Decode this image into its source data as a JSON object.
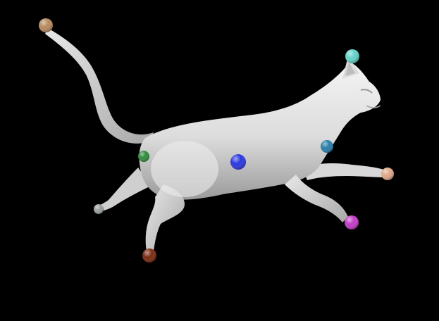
{
  "scene": {
    "background": "#000000",
    "model": {
      "name": "cat-3d-mesh",
      "pose": "running-leap",
      "body_color": "#e6e6e6",
      "shadow_color": "#8a8a8a"
    },
    "markers": [
      {
        "name": "tail-tip-marker",
        "color": "#b8895e"
      },
      {
        "name": "ear-marker",
        "color": "#63d3c9"
      },
      {
        "name": "chest-marker",
        "color": "#2a7ea8"
      },
      {
        "name": "front-paw-right-marker",
        "color": "#e0a888"
      },
      {
        "name": "front-paw-left-marker",
        "color": "#c23cc6"
      },
      {
        "name": "body-center-marker",
        "color": "#2a35e0"
      },
      {
        "name": "hip-marker",
        "color": "#2f8a3c"
      },
      {
        "name": "hind-paw-left-marker",
        "color": "#9aa0a0"
      },
      {
        "name": "hind-paw-right-marker",
        "color": "#7a2a12"
      }
    ]
  }
}
